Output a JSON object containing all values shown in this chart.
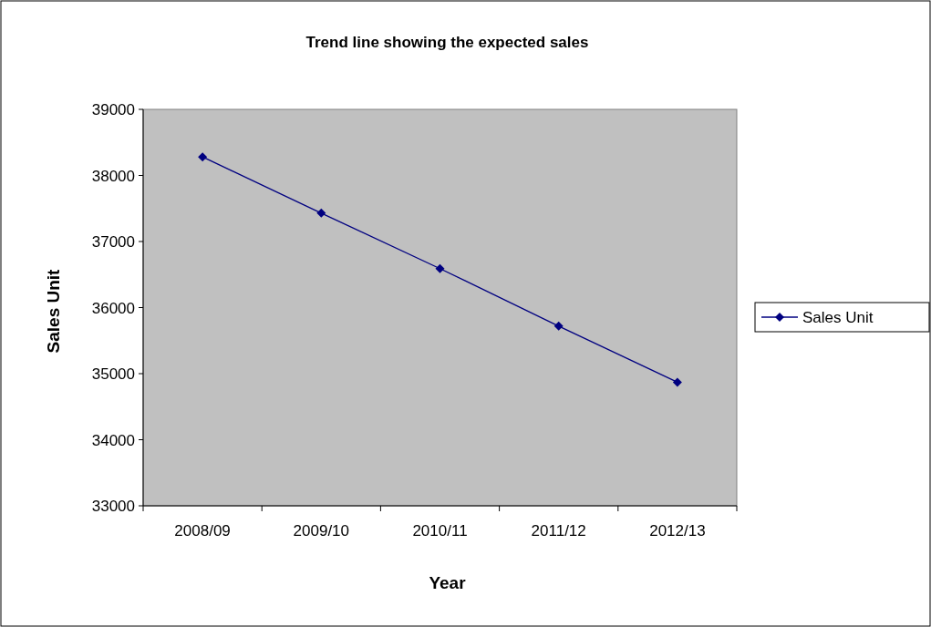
{
  "chart_data": {
    "type": "line",
    "title": "Trend line showing the expected sales",
    "xlabel": "Year",
    "ylabel": "Sales Unit",
    "categories": [
      "2008/09",
      "2009/10",
      "2010/11",
      "2011/12",
      "2012/13"
    ],
    "series": [
      {
        "name": "Sales Unit",
        "color": "#000080",
        "values": [
          38280,
          37430,
          36590,
          35720,
          34870
        ]
      }
    ],
    "ylim": [
      33000,
      39000
    ],
    "yticks": [
      33000,
      34000,
      35000,
      36000,
      37000,
      38000,
      39000
    ],
    "grid": false,
    "legend": "right",
    "marker": "diamond",
    "line_style": "solid"
  }
}
